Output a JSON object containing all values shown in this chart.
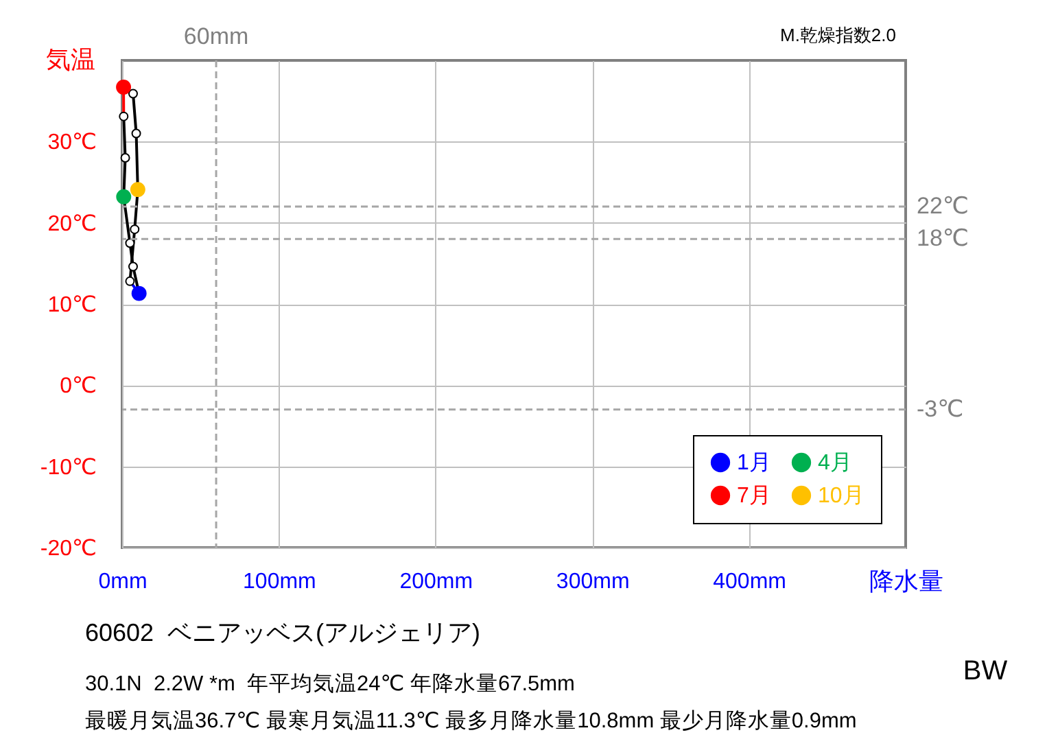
{
  "chart_data": {
    "type": "line",
    "title": "60602  ベニアッベス(アルジェリア)",
    "xlabel": "降水量",
    "ylabel": "気温",
    "annotations": [
      "M.乾燥指数2.0",
      "30.1N  2.2W *m  年平均気温24℃ 年降水量67.5mm",
      "最暖月気温36.7℃ 最寒月気温11.3℃ 最多月降水量10.8mm 最少月降水量0.9mm",
      "BW"
    ],
    "series": [
      {
        "color": "#000000",
        "x": [
          10.8,
          7,
          5,
          1,
          2,
          1
        ],
        "values": [
          11.3,
          14.6,
          17.5,
          23.2,
          28.0,
          33.1
        ]
      },
      {
        "color": "#ff0000",
        "x": [
          1,
          0.9
        ],
        "values": [
          33.1,
          36.7
        ]
      },
      {
        "color": "#000000",
        "x": [
          0.9,
          7,
          9,
          10,
          8,
          5
        ],
        "values": [
          36.7,
          35.9,
          31.0,
          24.1,
          19.2,
          12.8
        ]
      },
      {
        "color": "#0000ff",
        "x": [
          5,
          10.8
        ],
        "values": [
          12.8,
          11.3
        ]
      },
      {
        "type": "scatter",
        "color": "#ffffff",
        "x": [
          7,
          5,
          2,
          1,
          7,
          9,
          8,
          5
        ],
        "values": [
          14.6,
          17.5,
          28.0,
          33.1,
          35.9,
          31.0,
          19.2,
          12.8
        ]
      },
      {
        "type": "scatter",
        "name": "1月",
        "color": "#0000ff",
        "x": [
          10.8
        ],
        "values": [
          11.3
        ]
      },
      {
        "type": "scatter",
        "name": "4月",
        "color": "#00b050",
        "x": [
          1
        ],
        "values": [
          23.2
        ]
      },
      {
        "type": "scatter",
        "name": "7月",
        "color": "#ff0000",
        "x": [
          0.9
        ],
        "values": [
          36.7
        ]
      },
      {
        "type": "scatter",
        "name": "10月",
        "color": "#ffc000",
        "x": [
          10
        ],
        "values": [
          24.1
        ]
      }
    ],
    "xlim": [
      0,
      500
    ],
    "xticks": [
      {
        "value": 0,
        "label": "0mm"
      },
      {
        "value": 100,
        "label": "100mm"
      },
      {
        "value": 200,
        "label": "200mm"
      },
      {
        "value": 300,
        "label": "300mm"
      },
      {
        "value": 400,
        "label": "400mm"
      }
    ],
    "ylim": [
      -20,
      40
    ],
    "yticks": [
      {
        "value": -20,
        "label": "-20℃"
      },
      {
        "value": -10,
        "label": "-10℃"
      },
      {
        "value": 0,
        "label": "0℃"
      },
      {
        "value": 10,
        "label": "10℃"
      },
      {
        "value": 20,
        "label": "20℃"
      },
      {
        "value": 30,
        "label": "30℃"
      }
    ],
    "grid": true,
    "legend": "bottom right",
    "ref_lines": [
      {
        "axis": "x",
        "value": 60,
        "label": "60mm",
        "color": "#a6a6a6",
        "line_style": "dashed"
      },
      {
        "axis": "y",
        "value": 22,
        "label": "22℃",
        "color": "#a6a6a6",
        "line_style": "dashed"
      },
      {
        "axis": "y",
        "value": 18,
        "label": "18℃",
        "color": "#a6a6a6",
        "line_style": "dashed"
      },
      {
        "axis": "y",
        "value": -3,
        "label": "-3℃",
        "color": "#a6a6a6",
        "line_style": "dashed"
      }
    ]
  }
}
